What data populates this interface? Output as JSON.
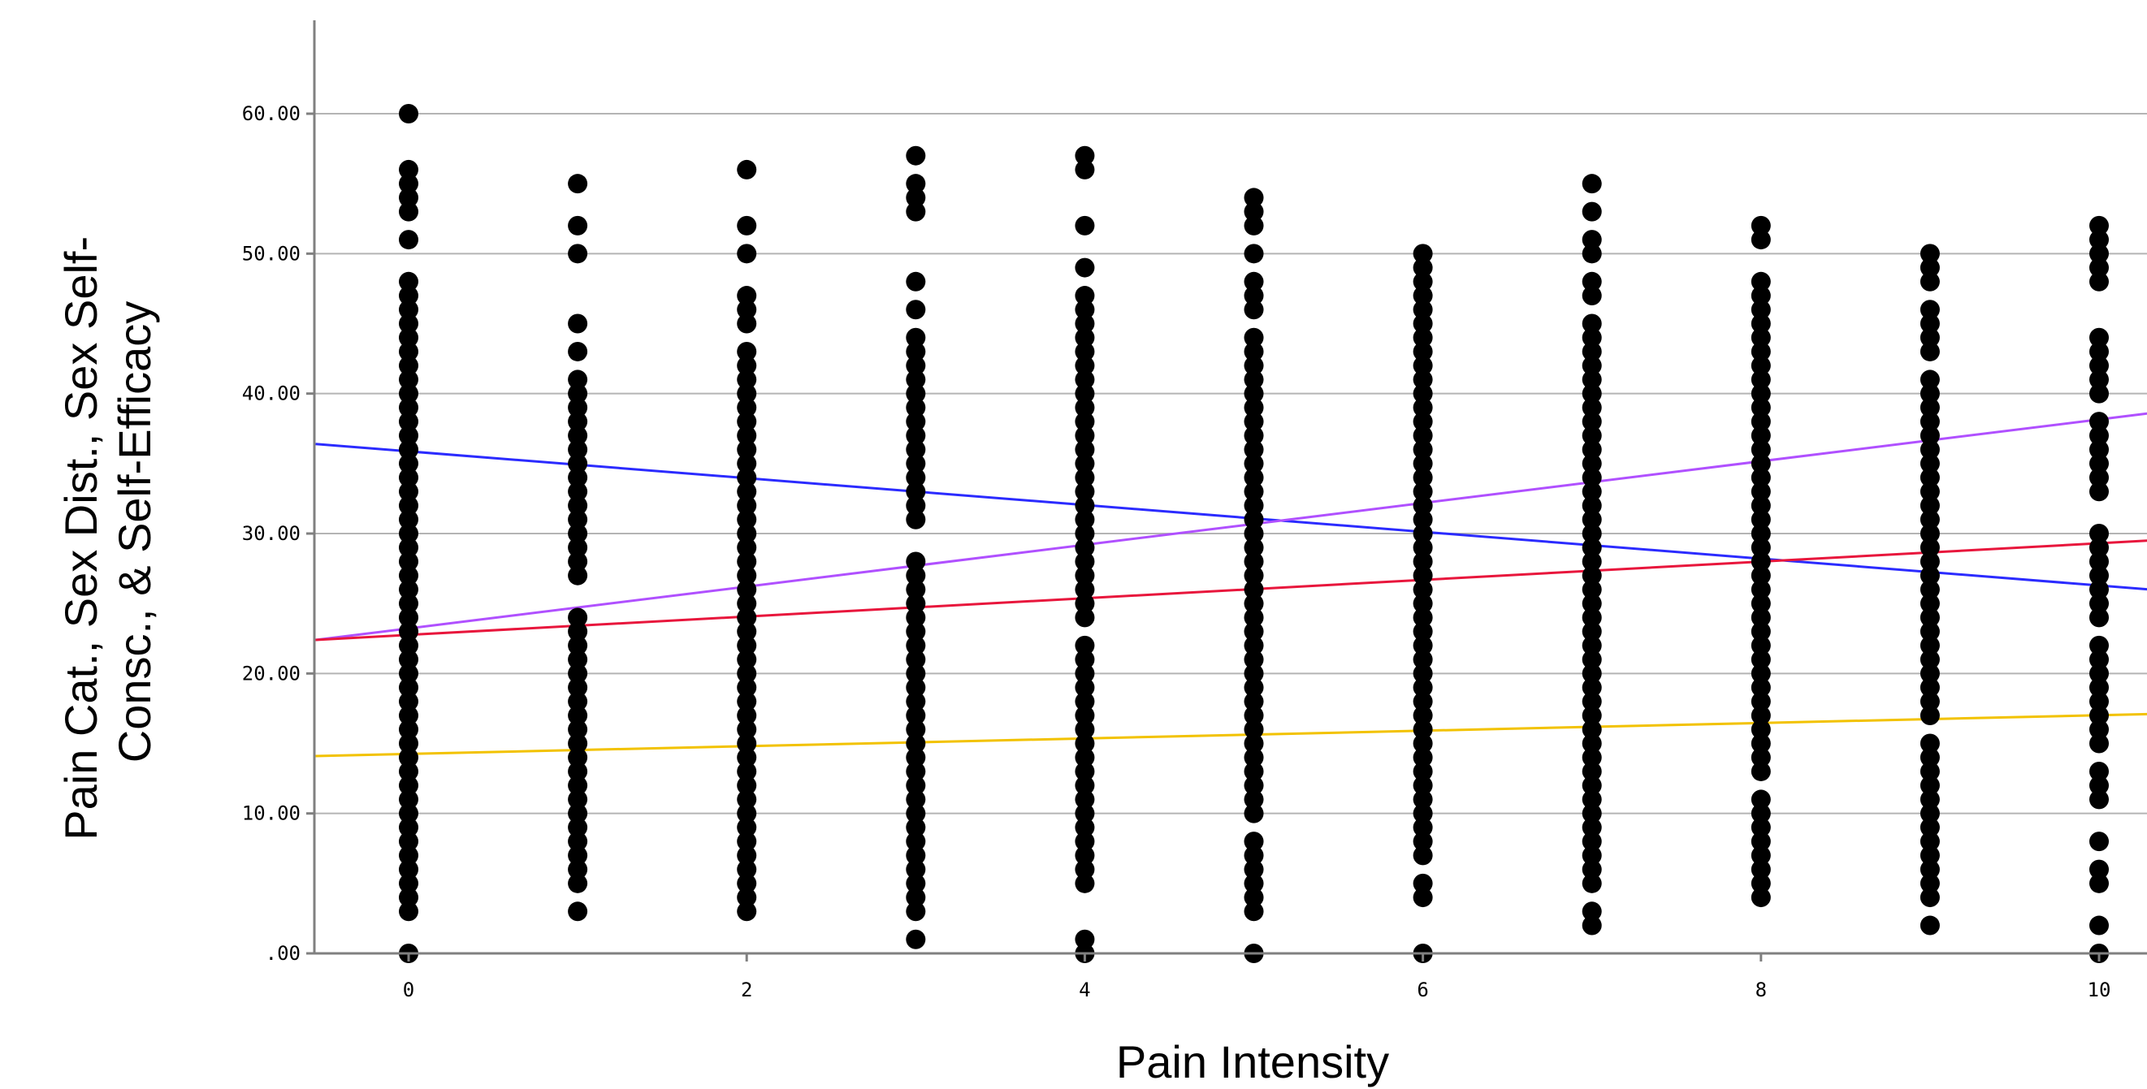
{
  "chart_data": {
    "type": "scatter",
    "title": "",
    "xlabel": "Pain Intensity",
    "ylabel_lines": [
      "Pain Cat., Sex Dist., Sex Self-",
      "Consc., & Self-Efficacy"
    ],
    "xlim": [
      -0.55,
      10.3
    ],
    "ylim": [
      0,
      60
    ],
    "x_ticks": [
      "0",
      "2",
      "4",
      "6",
      "8",
      "10"
    ],
    "x_tick_values": [
      0,
      2,
      4,
      6,
      8,
      10
    ],
    "y_ticks": [
      ".00",
      "10.00",
      "20.00",
      "30.00",
      "40.00",
      "50.00",
      "60.00"
    ],
    "y_tick_values": [
      0,
      10,
      20,
      30,
      40,
      50,
      60
    ],
    "grid": "horizontal",
    "point_color": "#000000",
    "columns": [
      {
        "x": 0,
        "values": [
          60,
          56,
          55,
          54,
          53,
          51,
          48,
          47,
          46,
          45,
          44,
          43,
          42,
          41,
          40,
          39,
          38,
          37,
          36,
          35,
          34,
          33,
          32,
          31,
          30,
          29,
          28,
          27,
          26,
          25,
          24,
          23,
          22,
          21,
          20,
          19,
          18,
          17,
          16,
          15,
          14,
          13,
          12,
          11,
          10,
          9,
          8,
          7,
          6,
          5,
          4,
          3,
          0
        ]
      },
      {
        "x": 1,
        "values": [
          55,
          52,
          50,
          45,
          43,
          41,
          40,
          39,
          38,
          37,
          36,
          35,
          34,
          33,
          32,
          31,
          30,
          29,
          28,
          27,
          24,
          23,
          22,
          21,
          20,
          19,
          18,
          17,
          16,
          15,
          14,
          13,
          12,
          11,
          10,
          9,
          8,
          7,
          6,
          5,
          3
        ]
      },
      {
        "x": 2,
        "values": [
          56,
          52,
          50,
          47,
          46,
          45,
          43,
          42,
          41,
          40,
          39,
          38,
          37,
          36,
          35,
          34,
          33,
          32,
          31,
          30,
          29,
          28,
          27,
          26,
          25,
          24,
          23,
          22,
          21,
          20,
          19,
          18,
          17,
          16,
          15,
          14,
          13,
          12,
          11,
          10,
          9,
          8,
          7,
          6,
          5,
          4,
          3
        ]
      },
      {
        "x": 3,
        "values": [
          57,
          55,
          54,
          53,
          48,
          46,
          44,
          43,
          42,
          41,
          40,
          39,
          38,
          37,
          36,
          35,
          34,
          33,
          32,
          31,
          28,
          27,
          26,
          25,
          24,
          23,
          22,
          21,
          20,
          19,
          18,
          17,
          16,
          15,
          14,
          13,
          12,
          11,
          10,
          9,
          8,
          7,
          6,
          5,
          4,
          3,
          1
        ]
      },
      {
        "x": 4,
        "values": [
          57,
          56,
          52,
          49,
          47,
          46,
          45,
          44,
          43,
          42,
          41,
          40,
          39,
          38,
          37,
          36,
          35,
          34,
          33,
          32,
          31,
          30,
          29,
          28,
          27,
          26,
          25,
          24,
          22,
          21,
          20,
          19,
          18,
          17,
          16,
          15,
          14,
          13,
          12,
          11,
          10,
          9,
          8,
          7,
          6,
          5,
          1,
          0
        ]
      },
      {
        "x": 5,
        "values": [
          54,
          53,
          52,
          50,
          48,
          47,
          46,
          44,
          43,
          42,
          41,
          40,
          39,
          38,
          37,
          36,
          35,
          34,
          33,
          32,
          31,
          30,
          29,
          28,
          27,
          26,
          25,
          24,
          23,
          22,
          21,
          20,
          19,
          18,
          17,
          16,
          15,
          14,
          13,
          12,
          11,
          10,
          8,
          7,
          6,
          5,
          4,
          3,
          0
        ]
      },
      {
        "x": 6,
        "values": [
          50,
          49,
          48,
          47,
          46,
          45,
          44,
          43,
          42,
          41,
          40,
          39,
          38,
          37,
          36,
          35,
          34,
          33,
          32,
          31,
          30,
          29,
          28,
          27,
          26,
          25,
          24,
          23,
          22,
          21,
          20,
          19,
          18,
          17,
          16,
          15,
          14,
          13,
          12,
          11,
          10,
          9,
          8,
          7,
          5,
          4,
          0
        ]
      },
      {
        "x": 7,
        "values": [
          55,
          53,
          51,
          50,
          48,
          47,
          45,
          44,
          43,
          42,
          41,
          40,
          39,
          38,
          37,
          36,
          35,
          34,
          33,
          32,
          31,
          30,
          29,
          28,
          27,
          26,
          25,
          24,
          23,
          22,
          21,
          20,
          19,
          18,
          17,
          16,
          15,
          14,
          13,
          12,
          11,
          10,
          9,
          8,
          7,
          6,
          5,
          3,
          2
        ]
      },
      {
        "x": 8,
        "values": [
          52,
          51,
          48,
          47,
          46,
          45,
          44,
          43,
          42,
          41,
          40,
          39,
          38,
          37,
          36,
          35,
          34,
          33,
          32,
          31,
          30,
          29,
          28,
          27,
          26,
          25,
          24,
          23,
          22,
          21,
          20,
          19,
          18,
          17,
          16,
          15,
          14,
          13,
          11,
          10,
          9,
          8,
          7,
          6,
          5,
          4
        ]
      },
      {
        "x": 9,
        "values": [
          50,
          49,
          48,
          46,
          45,
          44,
          43,
          41,
          40,
          39,
          38,
          37,
          36,
          35,
          34,
          33,
          32,
          31,
          30,
          29,
          28,
          27,
          26,
          25,
          24,
          23,
          22,
          21,
          20,
          19,
          18,
          17,
          15,
          14,
          13,
          12,
          11,
          10,
          9,
          8,
          7,
          6,
          5,
          4,
          2
        ]
      },
      {
        "x": 10,
        "values": [
          52,
          51,
          50,
          49,
          48,
          44,
          43,
          42,
          41,
          40,
          38,
          37,
          36,
          35,
          34,
          33,
          30,
          29,
          28,
          27,
          26,
          25,
          24,
          22,
          21,
          20,
          19,
          18,
          17,
          16,
          15,
          13,
          12,
          11,
          8,
          6,
          5,
          2,
          0
        ]
      }
    ],
    "fit_lines": [
      {
        "color": "#2b2bff",
        "y_at_xmin": 36.4,
        "y_at_xmax": 26.0
      },
      {
        "color": "#b050ff",
        "y_at_xmin": 22.4,
        "y_at_xmax": 38.6
      },
      {
        "color": "#e8163c",
        "y_at_xmin": 22.4,
        "y_at_xmax": 29.5
      },
      {
        "color": "#f2c200",
        "y_at_xmin": 14.1,
        "y_at_xmax": 17.1
      }
    ]
  }
}
